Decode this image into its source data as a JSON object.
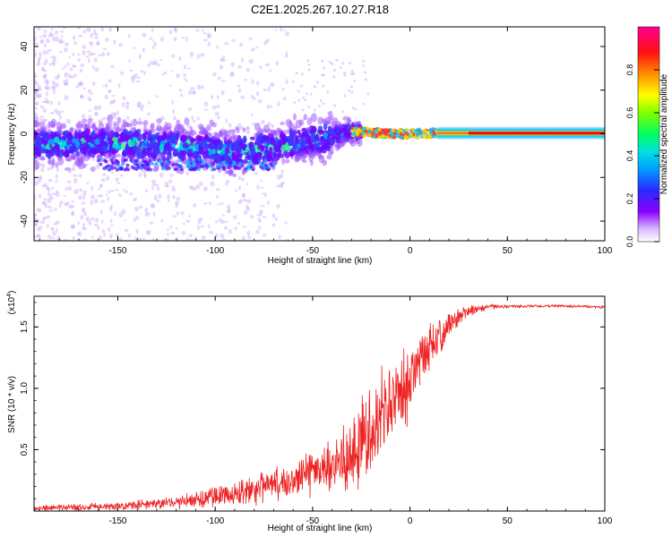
{
  "title": "C2E1.2025.267.10.27.R18",
  "chart_data": [
    {
      "type": "heatmap",
      "xlabel": "Height of straight line (km)",
      "ylabel": "Frequency (Hz)",
      "xlim": [
        -193,
        100
      ],
      "ylim": [
        -49,
        49
      ],
      "xticks": [
        -150,
        -100,
        -50,
        0,
        50,
        100
      ],
      "xtick_labels": [
        "-150",
        "-100",
        "-50",
        "0",
        "50",
        "100"
      ],
      "yticks": [
        -40,
        -20,
        0,
        20,
        40
      ],
      "ytick_labels": [
        "-40",
        "-20",
        "0",
        "20",
        "40"
      ],
      "colorbar": {
        "label": "Normalized spectral amplitude",
        "range": [
          0,
          1
        ],
        "ticks": [
          0.0,
          0.2,
          0.4,
          0.6,
          0.8
        ],
        "tick_labels": [
          "0.0",
          "0.2",
          "0.4",
          "0.6",
          "0.8"
        ],
        "colors": [
          "#ffffff",
          "#7a00ff",
          "#2020ff",
          "#00c8ff",
          "#00ff80",
          "#80ff00",
          "#ffff00",
          "#ff8000",
          "#ff0000",
          "#ff0090"
        ]
      },
      "ridge": {
        "description_points": [
          {
            "x": -193,
            "f": -5
          },
          {
            "x": -150,
            "f": -4
          },
          {
            "x": -110,
            "f": -6
          },
          {
            "x": -90,
            "f": -8
          },
          {
            "x": -70,
            "f": -6
          },
          {
            "x": -50,
            "f": -3
          },
          {
            "x": -30,
            "f": 1
          },
          {
            "x": -20,
            "f": 0.5
          },
          {
            "x": 0,
            "f": 0
          },
          {
            "x": 15,
            "f": 0.3
          },
          {
            "x": 100,
            "f": 0.3
          }
        ]
      }
    },
    {
      "type": "line",
      "xlabel": "Height of straight line (km)",
      "ylabel": "SNR (10 * v/v)",
      "exponent_label": "(x10",
      "exponent_sup": "4",
      "exponent_close": ")",
      "xlim": [
        -193,
        100
      ],
      "ylim": [
        0,
        1.75
      ],
      "xticks": [
        -150,
        -100,
        -50,
        0,
        50,
        100
      ],
      "xtick_labels": [
        "-150",
        "-100",
        "-50",
        "0",
        "50",
        "100"
      ],
      "yticks": [
        0.5,
        1.0,
        1.5
      ],
      "ytick_labels": [
        "0.5",
        "1.0",
        "1.5"
      ],
      "series": [
        {
          "name": "SNR",
          "color": "#ee2222",
          "profile_x": [
            -193,
            -150,
            -120,
            -100,
            -80,
            -60,
            -40,
            -30,
            -20,
            -10,
            0,
            10,
            20,
            30,
            40,
            60,
            80,
            100
          ],
          "profile_mean": [
            0.02,
            0.04,
            0.07,
            0.12,
            0.18,
            0.25,
            0.38,
            0.48,
            0.65,
            0.85,
            1.05,
            1.3,
            1.52,
            1.63,
            1.66,
            1.67,
            1.67,
            1.66
          ],
          "profile_spread": [
            0.02,
            0.03,
            0.04,
            0.08,
            0.1,
            0.12,
            0.18,
            0.28,
            0.35,
            0.3,
            0.25,
            0.18,
            0.1,
            0.04,
            0.02,
            0.01,
            0.01,
            0.01
          ]
        }
      ]
    }
  ]
}
